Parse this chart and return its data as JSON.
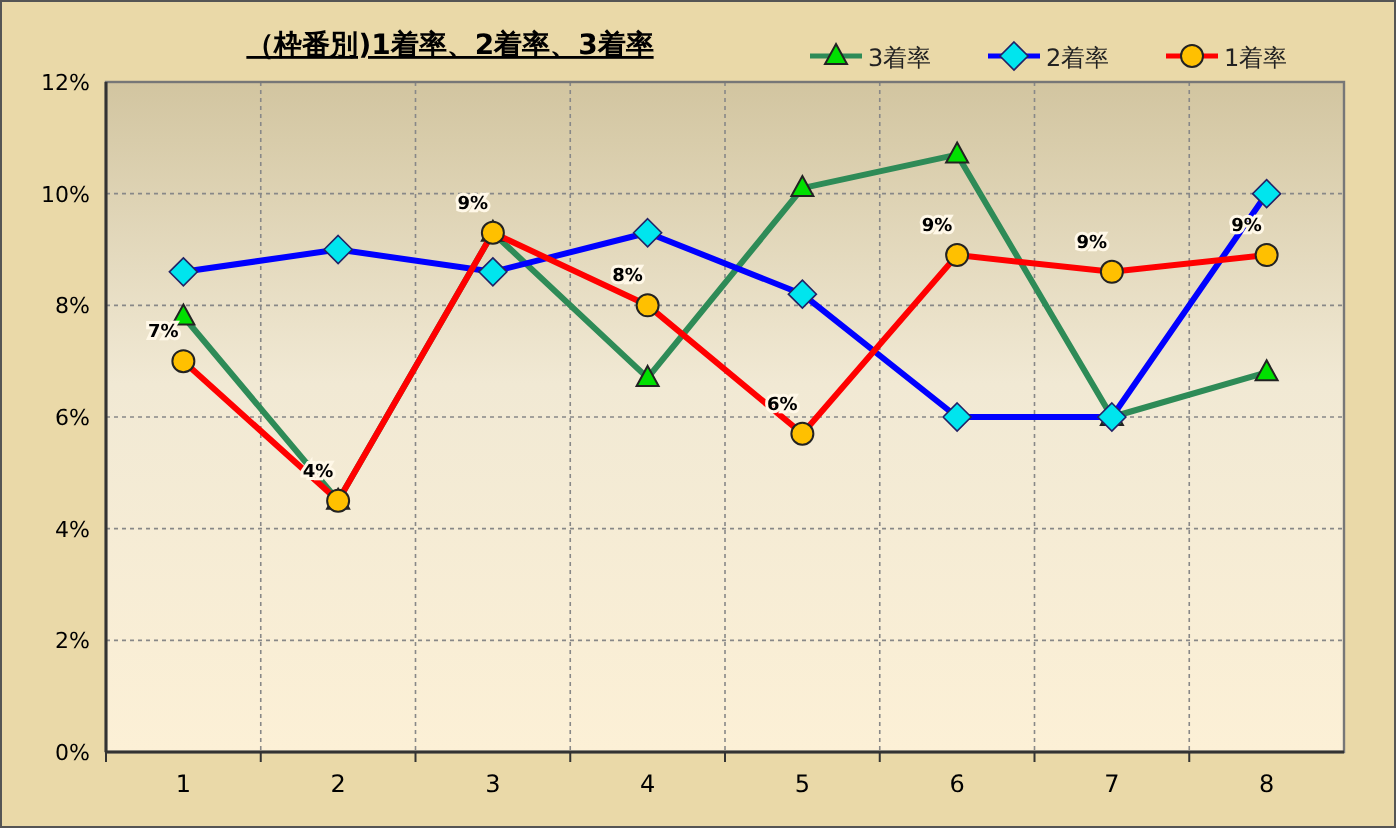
{
  "chart_data": {
    "type": "line",
    "title": "（枠番別)1着率、2着率、3着率",
    "categories": [
      "1",
      "2",
      "3",
      "4",
      "5",
      "6",
      "7",
      "8"
    ],
    "ylim": [
      0,
      12
    ],
    "yticks": [
      {
        "value": 0,
        "label": "0%"
      },
      {
        "value": 2,
        "label": "2%"
      },
      {
        "value": 4,
        "label": "4%"
      },
      {
        "value": 6,
        "label": "6%"
      },
      {
        "value": 8,
        "label": "8%"
      },
      {
        "value": 10,
        "label": "10%"
      },
      {
        "value": 12,
        "label": "12%"
      }
    ],
    "grid": true,
    "legend": "top right",
    "line_style": "solid",
    "series": [
      {
        "name": "3着率",
        "color": "#2e8b57",
        "marker": "triangle",
        "values": [
          7.8,
          4.5,
          9.3,
          6.7,
          10.1,
          10.7,
          6.0,
          6.8
        ]
      },
      {
        "name": "2着率",
        "color": "#0000ff",
        "marker": "diamond",
        "values": [
          8.6,
          9.0,
          8.6,
          9.3,
          8.2,
          6.0,
          6.0,
          10.0
        ]
      },
      {
        "name": "1着率",
        "color": "#ff0000",
        "marker": "circle",
        "values": [
          7.0,
          4.5,
          9.3,
          8.0,
          5.7,
          8.9,
          8.6,
          8.9
        ],
        "value_labels": [
          "7%",
          "4%",
          "9%",
          "8%",
          "6%",
          "9%",
          "9%",
          "9%"
        ]
      }
    ]
  }
}
